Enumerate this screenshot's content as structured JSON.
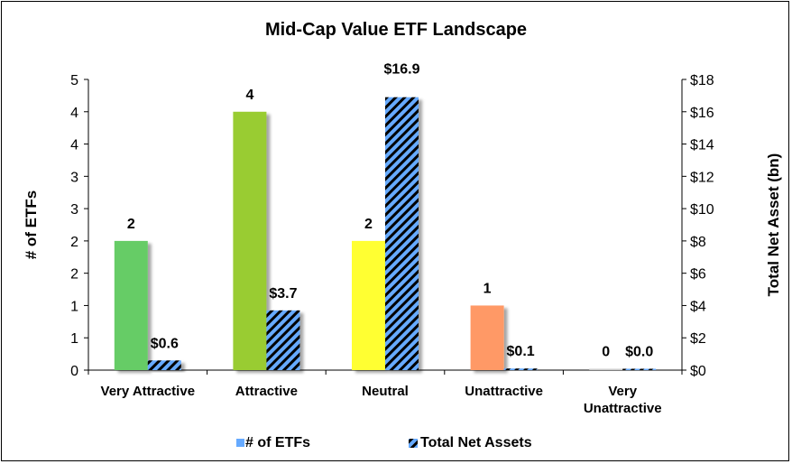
{
  "chart_data": {
    "type": "bar",
    "title": "Mid-Cap Value ETF Landscape",
    "categories": [
      [
        "Very Attractive"
      ],
      [
        "Attractive"
      ],
      [
        "Neutral"
      ],
      [
        "Unattractive"
      ],
      [
        "Very",
        "Unattractive"
      ]
    ],
    "series": [
      {
        "name": "# of ETFs",
        "axis": "left",
        "values": [
          2,
          4,
          2,
          1,
          0
        ],
        "labels": [
          "2",
          "4",
          "2",
          "1",
          "0"
        ],
        "colors": [
          "#66cc66",
          "#99cc33",
          "#ffff33",
          "#ff9966",
          "#cccccc"
        ],
        "legend_color": "#66aaff"
      },
      {
        "name": "Total Net Assets",
        "axis": "right",
        "values": [
          0.6,
          3.7,
          16.9,
          0.1,
          0.0
        ],
        "labels": [
          "$0.6",
          "$3.7",
          "$16.9",
          "$0.1",
          "$0.0"
        ],
        "pattern": "diagonal-stripes",
        "colors": [
          "#66aaff",
          "#000000"
        ]
      }
    ],
    "ylabel": "# of ETFs",
    "ylim": [
      0,
      4.5
    ],
    "y_ticks": [
      "0",
      "1",
      "1",
      "2",
      "2",
      "3",
      "3",
      "4",
      "4",
      "5"
    ],
    "y2label": "Total Net Asset (bn)",
    "y2lim": [
      0,
      18
    ],
    "y2_ticks": [
      "$0",
      "$2",
      "$4",
      "$6",
      "$8",
      "$10",
      "$12",
      "$14",
      "$16",
      "$18"
    ],
    "legend": "bottom",
    "grid": false
  }
}
